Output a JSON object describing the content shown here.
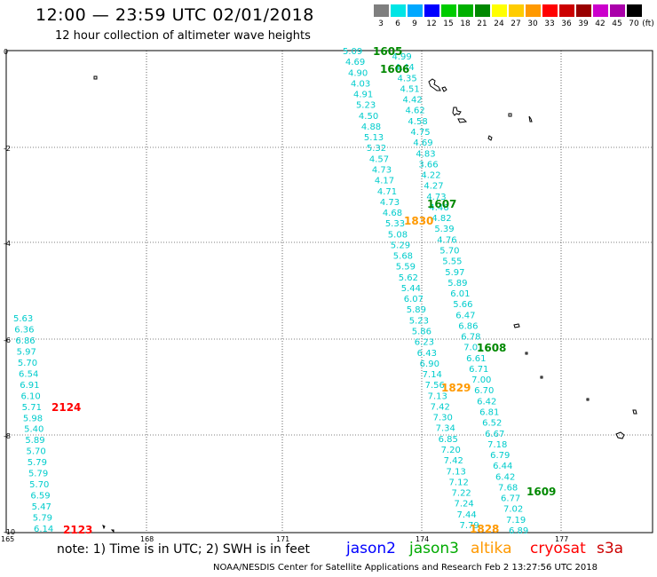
{
  "header": {
    "title": "12:00 — 23:59 UTC 02/01/2018",
    "subtitle": "12 hour collection of altimeter wave heights"
  },
  "legend": {
    "unit": "(ft)",
    "bins": [
      {
        "label": "3",
        "color": "#7f7f7f"
      },
      {
        "label": "6",
        "color": "#00e5e5"
      },
      {
        "label": "9",
        "color": "#00a8ff"
      },
      {
        "label": "12",
        "color": "#0000ff"
      },
      {
        "label": "15",
        "color": "#00cc00"
      },
      {
        "label": "18",
        "color": "#00b000"
      },
      {
        "label": "21",
        "color": "#008800"
      },
      {
        "label": "24",
        "color": "#ffff00"
      },
      {
        "label": "27",
        "color": "#ffcc00"
      },
      {
        "label": "30",
        "color": "#ff9900"
      },
      {
        "label": "33",
        "color": "#ff0000"
      },
      {
        "label": "36",
        "color": "#cc0000"
      },
      {
        "label": "39",
        "color": "#990000"
      },
      {
        "label": "42",
        "color": "#cc00cc"
      },
      {
        "label": "45",
        "color": "#aa00aa"
      },
      {
        "label": "70",
        "color": "#000000"
      }
    ]
  },
  "axes": {
    "lat_labels": [
      "0",
      "-2",
      "-4",
      "-6",
      "-8",
      "-10"
    ],
    "lon_labels": [
      "165",
      "168",
      "171",
      "174",
      "177"
    ]
  },
  "tracks": [
    {
      "id": "track_1605",
      "color": "#00cccc",
      "values": [
        "5.09",
        "4.99",
        "4.69",
        "4.44",
        "4.90",
        "4.35",
        "4.03",
        "4.51",
        "4.91",
        "4.42",
        "5.23",
        "4.62",
        "4.50",
        "4.58",
        "4.88",
        "4.75",
        "5.13",
        "4.69",
        "5.32",
        "4.83",
        "4.57",
        "3.66",
        "4.73",
        "4.22",
        "4.17",
        "4.27",
        "4.71",
        "4.73",
        "4.73",
        "4.46",
        "4.68",
        "4.82",
        "5.33",
        "5.39",
        "5.08",
        "4.76",
        "5.29",
        "5.70",
        "5.68",
        "5.55",
        "5.59",
        "5.97",
        "5.62",
        "5.89",
        "5.44",
        "6.01",
        "6.07",
        "5.66",
        "5.89",
        "6.47",
        "5.23",
        "6.86",
        "5.86",
        "6.78",
        "6.23",
        "7.01",
        "6.43",
        "6.61",
        "6.90",
        "6.71",
        "7.14",
        "7.00",
        "7.56",
        "6.70",
        "7.13",
        "6.42",
        "7.42",
        "6.81",
        "7.30",
        "6.52",
        "7.34",
        "6.67",
        "6.85",
        "7.18",
        "7.20",
        "6.79",
        "7.42",
        "6.44",
        "7.13",
        "6.42",
        "7.12",
        "7.68",
        "7.22",
        "6.77",
        "7.24",
        "7.02",
        "7.44",
        "7.19",
        "7.79",
        "6.89"
      ]
    },
    {
      "id": "track_2124",
      "color": "#00cccc",
      "values": [
        "5.63",
        "6.36",
        "6.86",
        "5.97",
        "5.70",
        "6.54",
        "6.91",
        "6.10",
        "5.71",
        "5.98",
        "5.40",
        "5.89",
        "5.70",
        "5.79",
        "5.79",
        "5.70",
        "6.59",
        "5.47",
        "5.79",
        "6.14"
      ]
    }
  ],
  "pass_labels": [
    {
      "text": "1605",
      "color": "#008800"
    },
    {
      "text": "1606",
      "color": "#008800"
    },
    {
      "text": "1607",
      "color": "#008800"
    },
    {
      "text": "1830",
      "color": "#ff9900"
    },
    {
      "text": "1608",
      "color": "#008800"
    },
    {
      "text": "1829",
      "color": "#ff9900"
    },
    {
      "text": "1609",
      "color": "#008800"
    },
    {
      "text": "1828",
      "color": "#ff9900"
    },
    {
      "text": "2124",
      "color": "#ff0000"
    },
    {
      "text": "2123",
      "color": "#ff0000"
    }
  ],
  "footer": {
    "note": "note: 1) Time is in UTC; 2) SWH is in feet",
    "satellites": [
      {
        "name": "jason2",
        "color": "#0000ff"
      },
      {
        "name": "jason3",
        "color": "#00aa00"
      },
      {
        "name": "altika",
        "color": "#ff9900"
      },
      {
        "name": "cryosat",
        "color": "#ff0000"
      },
      {
        "name": "s3a",
        "color": "#cc0000"
      }
    ],
    "credit": "NOAA/NESDIS Center for Satellite Applications and Research    Feb  2 13:27:56 UTC 2018"
  }
}
